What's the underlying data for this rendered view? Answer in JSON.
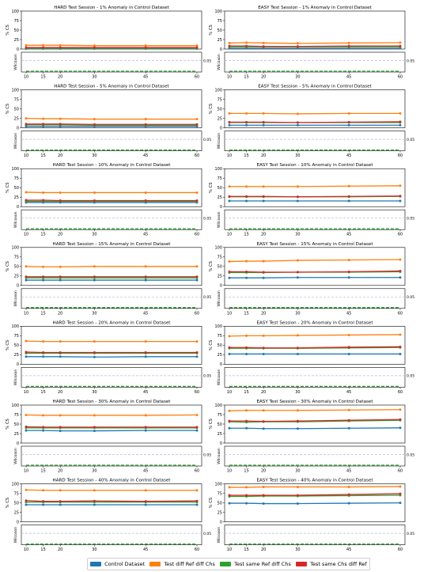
{
  "colors": {
    "control": "#1f77b4",
    "diff_ref_diff_chs": "#ff7f0e",
    "same_ref_diff_chs": "#2ca02c",
    "same_chs_diff_ref": "#d62728",
    "threshold_line": "#b8b8dc"
  },
  "chart_data": {
    "type": "line",
    "x": [
      10,
      15,
      20,
      30,
      45,
      60
    ],
    "ylabel": "% CS",
    "ylim": [
      0,
      100
    ],
    "yticks": [
      0,
      25,
      50,
      75,
      100
    ],
    "lower_ylabel": "Wilcoxon",
    "lower_threshold_label": "0.05",
    "legend_placement": "bottom-center",
    "legend": [
      {
        "key": "control",
        "label": "Control Dataset"
      },
      {
        "key": "diff_ref_diff_chs",
        "label": "Test diff Ref diff Chs"
      },
      {
        "key": "same_ref_diff_chs",
        "label": "Test same Ref diff Chs"
      },
      {
        "key": "same_chs_diff_ref",
        "label": "Test same Chs diff Ref"
      }
    ],
    "panels": [
      {
        "row": 0,
        "col": 0,
        "title": "HARD Test Session - 1% Anomaly in Control Dataset",
        "series": [
          {
            "key": "control",
            "values": [
              1,
              1,
              1,
              1,
              1,
              1
            ]
          },
          {
            "key": "diff_ref_diff_chs",
            "values": [
              10,
              10,
              10,
              9,
              9,
              9
            ]
          },
          {
            "key": "same_ref_diff_chs",
            "values": [
              2,
              2,
              2,
              2,
              2,
              2
            ]
          },
          {
            "key": "same_chs_diff_ref",
            "values": [
              4,
              4,
              4,
              4,
              4,
              4
            ]
          }
        ]
      },
      {
        "row": 0,
        "col": 1,
        "title": "EASY Test Session - 1% Anomaly in Control Dataset",
        "series": [
          {
            "key": "control",
            "values": [
              2,
              2,
              2,
              2,
              2,
              2
            ]
          },
          {
            "key": "diff_ref_diff_chs",
            "values": [
              16,
              17,
              16,
              15,
              16,
              17
            ]
          },
          {
            "key": "same_ref_diff_chs",
            "values": [
              6,
              6,
              6,
              6,
              6,
              6
            ]
          },
          {
            "key": "same_chs_diff_ref",
            "values": [
              8,
              8,
              7,
              7,
              8,
              8
            ]
          }
        ]
      },
      {
        "row": 1,
        "col": 0,
        "title": "HARD Test Session - 5% Anomaly in Control Dataset",
        "series": [
          {
            "key": "control",
            "values": [
              4,
              4,
              4,
              4,
              4,
              4
            ]
          },
          {
            "key": "diff_ref_diff_chs",
            "values": [
              25,
              24,
              24,
              23,
              23,
              23
            ]
          },
          {
            "key": "same_ref_diff_chs",
            "values": [
              8,
              8,
              8,
              7,
              7,
              7
            ]
          },
          {
            "key": "same_chs_diff_ref",
            "values": [
              10,
              10,
              10,
              9,
              9,
              9
            ]
          }
        ]
      },
      {
        "row": 1,
        "col": 1,
        "title": "EASY Test Session - 5% Anomaly in Control Dataset",
        "series": [
          {
            "key": "control",
            "values": [
              7,
              7,
              7,
              7,
              7,
              7
            ]
          },
          {
            "key": "diff_ref_diff_chs",
            "values": [
              38,
              38,
              38,
              37,
              38,
              38
            ]
          },
          {
            "key": "same_ref_diff_chs",
            "values": [
              14,
              14,
              14,
              14,
              14,
              14
            ]
          },
          {
            "key": "same_chs_diff_ref",
            "values": [
              15,
              15,
              15,
              14,
              15,
              16
            ]
          }
        ]
      },
      {
        "row": 2,
        "col": 0,
        "title": "HARD Test Session - 10% Anomaly in Control Dataset",
        "series": [
          {
            "key": "control",
            "values": [
              11,
              11,
              11,
              11,
              11,
              11
            ]
          },
          {
            "key": "diff_ref_diff_chs",
            "values": [
              38,
              37,
              37,
              37,
              37,
              37
            ]
          },
          {
            "key": "same_ref_diff_chs",
            "values": [
              14,
              14,
              14,
              14,
              14,
              14
            ]
          },
          {
            "key": "same_chs_diff_ref",
            "values": [
              17,
              17,
              16,
              16,
              16,
              16
            ]
          }
        ]
      },
      {
        "row": 2,
        "col": 1,
        "title": "EASY Test Session - 10% Anomaly in Control Dataset",
        "series": [
          {
            "key": "control",
            "values": [
              15,
              15,
              15,
              15,
              15,
              15
            ]
          },
          {
            "key": "diff_ref_diff_chs",
            "values": [
              53,
              53,
              53,
              53,
              54,
              55
            ]
          },
          {
            "key": "same_ref_diff_chs",
            "values": [
              26,
              26,
              26,
              26,
              26,
              27
            ]
          },
          {
            "key": "same_chs_diff_ref",
            "values": [
              27,
              27,
              27,
              26,
              27,
              28
            ]
          }
        ]
      },
      {
        "row": 3,
        "col": 0,
        "title": "HARD Test Session - 15% Anomaly in Control Dataset",
        "series": [
          {
            "key": "control",
            "values": [
              14,
              14,
              14,
              14,
              14,
              14
            ]
          },
          {
            "key": "diff_ref_diff_chs",
            "values": [
              50,
              49,
              49,
              50,
              50,
              50
            ]
          },
          {
            "key": "same_ref_diff_chs",
            "values": [
              20,
              20,
              20,
              20,
              20,
              20
            ]
          },
          {
            "key": "same_chs_diff_ref",
            "values": [
              23,
              23,
              23,
              23,
              23,
              23
            ]
          }
        ]
      },
      {
        "row": 3,
        "col": 1,
        "title": "EASY Test Session - 15% Anomaly in Control Dataset",
        "series": [
          {
            "key": "control",
            "values": [
              20,
              20,
              20,
              21,
              21,
              21
            ]
          },
          {
            "key": "diff_ref_diff_chs",
            "values": [
              63,
              64,
              64,
              66,
              67,
              68
            ]
          },
          {
            "key": "same_ref_diff_chs",
            "values": [
              34,
              34,
              34,
              35,
              35,
              36
            ]
          },
          {
            "key": "same_chs_diff_ref",
            "values": [
              36,
              36,
              35,
              35,
              36,
              38
            ]
          }
        ]
      },
      {
        "row": 4,
        "col": 0,
        "title": "HARD Test Session - 20% Anomaly in Control Dataset",
        "series": [
          {
            "key": "control",
            "values": [
              20,
              20,
              20,
              19,
              20,
              20
            ]
          },
          {
            "key": "diff_ref_diff_chs",
            "values": [
              61,
              60,
              60,
              60,
              60,
              60
            ]
          },
          {
            "key": "same_ref_diff_chs",
            "values": [
              29,
              29,
              29,
              29,
              29,
              29
            ]
          },
          {
            "key": "same_chs_diff_ref",
            "values": [
              32,
              31,
              31,
              31,
              31,
              31
            ]
          }
        ]
      },
      {
        "row": 4,
        "col": 1,
        "title": "EASY Test Session - 20% Anomaly in Control Dataset",
        "series": [
          {
            "key": "control",
            "values": [
              27,
              27,
              27,
              27,
              27,
              27
            ]
          },
          {
            "key": "diff_ref_diff_chs",
            "values": [
              74,
              75,
              75,
              76,
              77,
              78
            ]
          },
          {
            "key": "same_ref_diff_chs",
            "values": [
              42,
              42,
              42,
              42,
              43,
              44
            ]
          },
          {
            "key": "same_chs_diff_ref",
            "values": [
              44,
              44,
              43,
              43,
              45,
              46
            ]
          }
        ]
      },
      {
        "row": 5,
        "col": 0,
        "title": "HARD Test Session - 30% Anomaly in Control Dataset",
        "series": [
          {
            "key": "control",
            "values": [
              33,
              33,
              32,
              32,
              33,
              33
            ]
          },
          {
            "key": "diff_ref_diff_chs",
            "values": [
              74,
              73,
              73,
              73,
              73,
              74
            ]
          },
          {
            "key": "same_ref_diff_chs",
            "values": [
              40,
              40,
              40,
              40,
              40,
              40
            ]
          },
          {
            "key": "same_chs_diff_ref",
            "values": [
              43,
              42,
              42,
              42,
              42,
              42
            ]
          }
        ]
      },
      {
        "row": 5,
        "col": 1,
        "title": "EASY Test Session - 30% Anomaly in Control Dataset",
        "series": [
          {
            "key": "control",
            "values": [
              39,
              39,
              38,
              38,
              39,
              40
            ]
          },
          {
            "key": "diff_ref_diff_chs",
            "values": [
              85,
              86,
              86,
              86,
              87,
              88
            ]
          },
          {
            "key": "same_ref_diff_chs",
            "values": [
              56,
              55,
              56,
              56,
              58,
              60
            ]
          },
          {
            "key": "same_chs_diff_ref",
            "values": [
              58,
              58,
              57,
              58,
              60,
              62
            ]
          }
        ]
      },
      {
        "row": 6,
        "col": 0,
        "title": "HARD Test Session - 40% Anomaly in Control Dataset",
        "series": [
          {
            "key": "control",
            "values": [
              45,
              45,
              45,
              45,
              45,
              45
            ]
          },
          {
            "key": "diff_ref_diff_chs",
            "values": [
              84,
              83,
              83,
              83,
              83,
              83
            ]
          },
          {
            "key": "same_ref_diff_chs",
            "values": [
              52,
              52,
              52,
              52,
              52,
              52
            ]
          },
          {
            "key": "same_chs_diff_ref",
            "values": [
              56,
              54,
              54,
              55,
              54,
              55
            ]
          }
        ]
      },
      {
        "row": 6,
        "col": 1,
        "title": "EASY Test Session - 40% Anomaly in Control Dataset",
        "series": [
          {
            "key": "control",
            "values": [
              49,
              49,
              48,
              48,
              49,
              50
            ]
          },
          {
            "key": "diff_ref_diff_chs",
            "values": [
              91,
              91,
              92,
              92,
              92,
              93
            ]
          },
          {
            "key": "same_ref_diff_chs",
            "values": [
              67,
              67,
              68,
              68,
              69,
              70
            ]
          },
          {
            "key": "same_chs_diff_ref",
            "values": [
              70,
              70,
              70,
              70,
              72,
              74
            ]
          }
        ]
      }
    ]
  }
}
